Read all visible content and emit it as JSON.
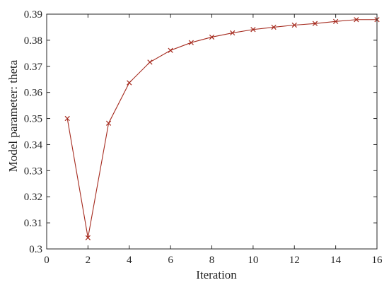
{
  "chart_data": {
    "type": "line",
    "xlabel": "Iteration",
    "ylabel": "Model parameter: theta",
    "xlim": [
      0,
      16
    ],
    "ylim": [
      0.3,
      0.39
    ],
    "x_ticks": [
      0,
      2,
      4,
      6,
      8,
      10,
      12,
      14,
      16
    ],
    "x_tick_labels": [
      "0",
      "2",
      "4",
      "6",
      "8",
      "10",
      "12",
      "14",
      "16"
    ],
    "y_ticks": [
      0.3,
      0.31,
      0.32,
      0.33,
      0.34,
      0.35,
      0.36,
      0.37,
      0.38,
      0.39
    ],
    "y_tick_labels": [
      "0.3",
      "0.31",
      "0.32",
      "0.33",
      "0.34",
      "0.35",
      "0.36",
      "0.37",
      "0.38",
      "0.39"
    ],
    "grid": false,
    "marker": "x",
    "series": [
      {
        "color": "#a52a1e",
        "marker_color": "#a52a1e",
        "x": [
          1,
          2,
          3,
          4,
          5,
          6,
          7,
          8,
          9,
          10,
          11,
          12,
          13,
          14,
          15,
          16
        ],
        "y": [
          0.35,
          0.3043,
          0.3482,
          0.3637,
          0.3716,
          0.3761,
          0.3791,
          0.3812,
          0.3828,
          0.3841,
          0.385,
          0.3858,
          0.3864,
          0.3872,
          0.3879,
          0.3879
        ]
      }
    ]
  }
}
